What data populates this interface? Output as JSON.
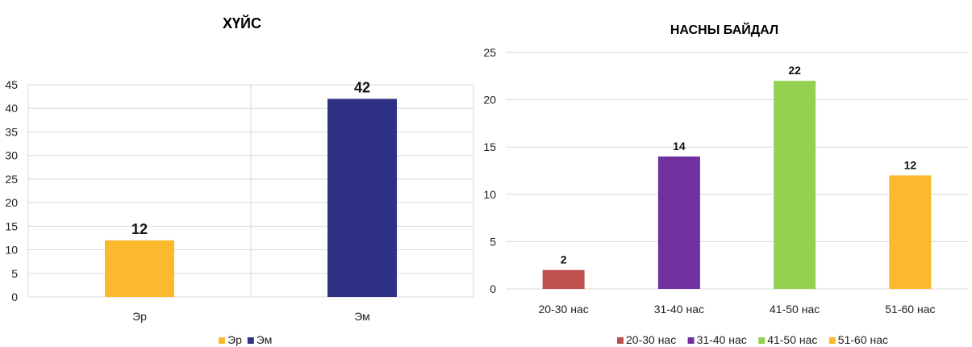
{
  "chart_data": [
    {
      "type": "bar",
      "title": "ХҮЙС",
      "categories": [
        "Эр",
        "Эм"
      ],
      "values": [
        12,
        42
      ],
      "colors": [
        "#FBBA2E",
        "#2E3184"
      ],
      "ylim": [
        0,
        45
      ],
      "yticks": [
        0,
        5,
        10,
        15,
        20,
        25,
        30,
        35,
        40,
        45
      ],
      "grid": true,
      "legend": {
        "placement": "bottom",
        "entries": [
          "Эр",
          "Эм"
        ]
      }
    },
    {
      "type": "bar",
      "title": "НАСНЫ БАЙДАЛ",
      "categories": [
        "20-30 нас",
        "31-40 нас",
        "41-50 нас",
        "51-60 нас"
      ],
      "values": [
        2,
        14,
        22,
        12
      ],
      "colors": [
        "#C0504D",
        "#7030A0",
        "#92D050",
        "#FBBA2E"
      ],
      "ylim": [
        0,
        25
      ],
      "yticks": [
        0,
        5,
        10,
        15,
        20,
        25
      ],
      "grid": true,
      "legend": {
        "placement": "bottom",
        "entries": [
          "20-30 нас",
          "31-40 нас",
          "41-50 нас",
          "51-60 нас"
        ]
      }
    }
  ]
}
